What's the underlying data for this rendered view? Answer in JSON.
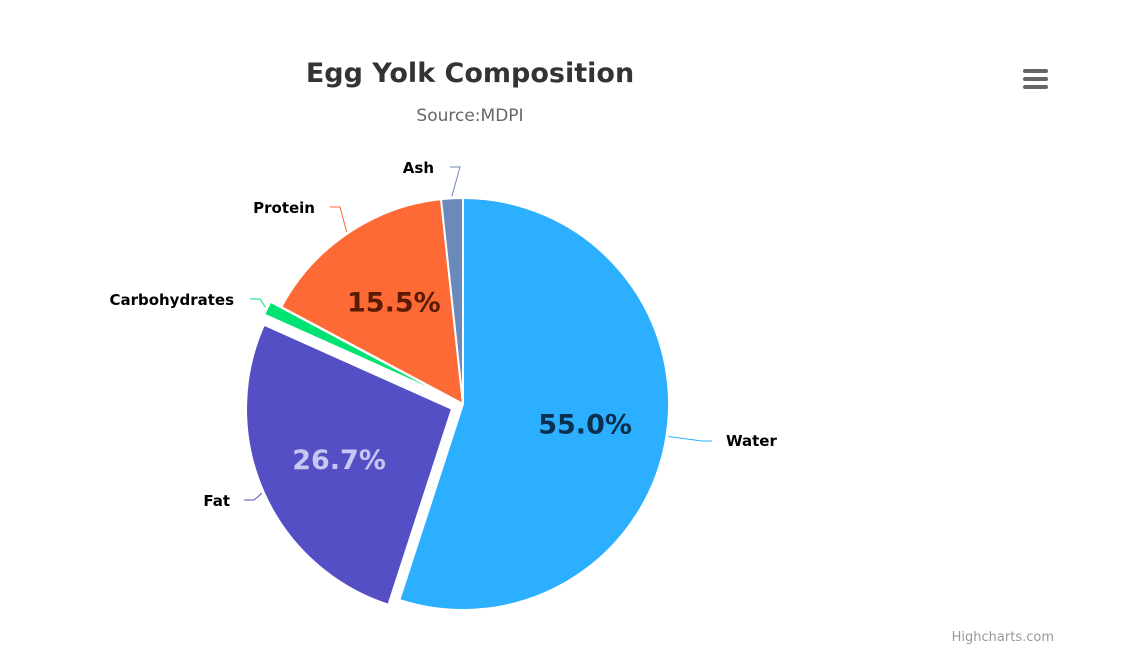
{
  "chart": {
    "title": "Egg Yolk Composition",
    "subtitle": "Source:MDPI",
    "credits": "Highcharts.com",
    "menu_icon": "hamburger-menu-icon"
  },
  "chart_data": {
    "type": "pie",
    "title": "Egg Yolk Composition",
    "subtitle": "Source:MDPI",
    "series": [
      {
        "data": [
          {
            "name": "Water",
            "value": 55.0,
            "color": "#2caffe",
            "label": "55.0%",
            "label_color": "#0d2f4f"
          },
          {
            "name": "Fat",
            "value": 26.7,
            "color": "#544fc5",
            "label": "26.7%",
            "label_color": "#c8c6f2",
            "sliced": true
          },
          {
            "name": "Carbohydrates",
            "value": 1.1,
            "color": "#00e272",
            "sliced": true
          },
          {
            "name": "Protein",
            "value": 15.5,
            "color": "#fe6a35",
            "label": "15.5%",
            "label_color": "#5a1b05"
          },
          {
            "name": "Ash",
            "value": 1.7,
            "color": "#6b8abc"
          }
        ]
      }
    ],
    "legend": "none"
  }
}
